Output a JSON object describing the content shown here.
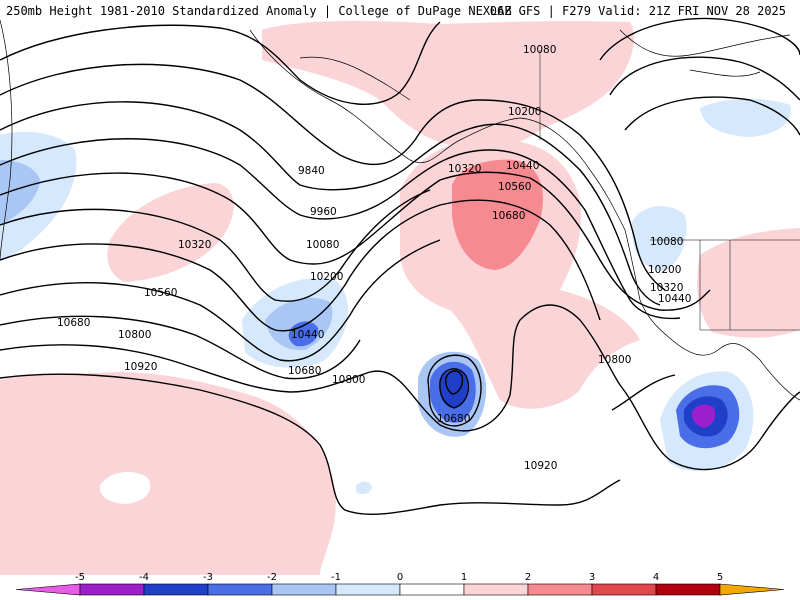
{
  "header": {
    "left_title": "250mb Height 1981-2010 Standardized Anomaly | College of DuPage NEXLAB",
    "right_title": "06Z GFS | F279 Valid: 21Z FRI NOV 28 2025"
  },
  "contour_labels": [
    "10080",
    "10200",
    "9840",
    "9960",
    "10080",
    "10320",
    "10440",
    "10320",
    "10560",
    "10200",
    "10680",
    "10560",
    "10440",
    "10800",
    "10680",
    "10920",
    "10680",
    "10800",
    "10080",
    "10200",
    "10320",
    "10440",
    "10800",
    "10680",
    "10920"
  ],
  "colorbar": {
    "ticks": [
      "-5",
      "-4",
      "-3",
      "-2",
      "-1",
      "0",
      "1",
      "2",
      "3",
      "4",
      "5"
    ],
    "colors": [
      "#e65ce6",
      "#9c1fcc",
      "#1f3fc8",
      "#4a6ee8",
      "#a9c6f5",
      "#d6e8fb",
      "#ffffff",
      "#fbd4d7",
      "#f58a90",
      "#e0484d",
      "#b00010",
      "#f2a800"
    ]
  }
}
